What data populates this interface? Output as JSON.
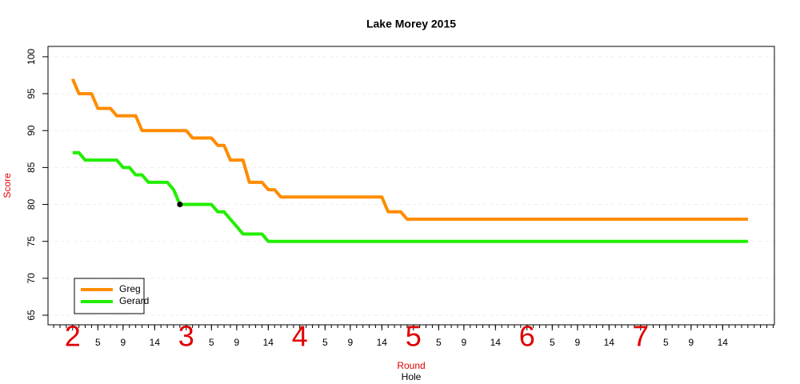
{
  "chart_data": {
    "type": "line",
    "title": "Lake Morey 2015",
    "xlabel": "Hole",
    "round_label": "Round",
    "ylabel": "Score",
    "x": [
      1,
      2,
      3,
      4,
      5,
      6,
      7,
      8,
      9,
      10,
      11,
      12,
      13,
      14,
      15,
      16,
      17,
      18,
      19,
      20,
      21,
      22,
      23,
      24,
      25,
      26,
      27,
      28,
      29,
      30,
      31,
      32,
      33,
      34,
      35,
      36,
      37,
      38,
      39,
      40,
      41,
      42,
      43,
      44,
      45,
      46,
      47,
      48,
      49,
      50,
      51,
      52,
      53,
      54,
      55,
      56,
      57,
      58,
      59,
      60,
      61,
      62,
      63,
      64,
      65,
      66,
      67,
      68,
      69,
      70,
      71,
      72,
      73,
      74,
      75,
      76,
      77,
      78,
      79,
      80,
      81,
      82,
      83,
      84,
      85,
      86,
      87,
      88,
      89,
      90,
      91,
      92,
      93,
      94,
      95,
      96,
      97,
      98,
      99,
      100,
      101,
      102,
      103,
      104,
      105,
      106,
      107,
      108
    ],
    "series": [
      {
        "name": "Greg",
        "color": "#ff8c00",
        "values": [
          97,
          95,
          95,
          95,
          93,
          93,
          93,
          92,
          92,
          92,
          92,
          90,
          90,
          90,
          90,
          90,
          90,
          90,
          90,
          89,
          89,
          89,
          89,
          88,
          88,
          86,
          86,
          86,
          83,
          83,
          83,
          82,
          82,
          81,
          81,
          81,
          81,
          81,
          81,
          81,
          81,
          81,
          81,
          81,
          81,
          81,
          81,
          81,
          81,
          81,
          79,
          79,
          79,
          78,
          78,
          78,
          78,
          78,
          78,
          78,
          78,
          78,
          78,
          78,
          78,
          78,
          78,
          78,
          78,
          78,
          78,
          78,
          78,
          78,
          78,
          78,
          78,
          78,
          78,
          78,
          78,
          78,
          78,
          78,
          78,
          78,
          78,
          78,
          78,
          78,
          78,
          78,
          78,
          78,
          78,
          78,
          78,
          78,
          78,
          78,
          78,
          78,
          78,
          78,
          78,
          78,
          78,
          78
        ]
      },
      {
        "name": "Gerard",
        "color": "#22ee00",
        "values": [
          87,
          87,
          86,
          86,
          86,
          86,
          86,
          86,
          85,
          85,
          84,
          84,
          83,
          83,
          83,
          83,
          82,
          80,
          80,
          80,
          80,
          80,
          80,
          79,
          79,
          78,
          77,
          76,
          76,
          76,
          76,
          75,
          75,
          75,
          75,
          75,
          75,
          75,
          75,
          75,
          75,
          75,
          75,
          75,
          75,
          75,
          75,
          75,
          75,
          75,
          75,
          75,
          75,
          75,
          75,
          75,
          75,
          75,
          75,
          75,
          75,
          75,
          75,
          75,
          75,
          75,
          75,
          75,
          75,
          75,
          75,
          75,
          75,
          75,
          75,
          75,
          75,
          75,
          75,
          75,
          75,
          75,
          75,
          75,
          75,
          75,
          75,
          75,
          75,
          75,
          75,
          75,
          75,
          75,
          75,
          75,
          75,
          75,
          75,
          75,
          75,
          75,
          75,
          75,
          75,
          75,
          75,
          75
        ]
      }
    ],
    "marker": {
      "x": 18,
      "y": 80
    },
    "xlim": [
      -2.9,
      112.2
    ],
    "ylim": [
      63.7,
      101.4
    ],
    "yticks": [
      65,
      70,
      75,
      80,
      85,
      90,
      95,
      100
    ],
    "xticks": [
      {
        "value": 5,
        "label": "5"
      },
      {
        "value": 9,
        "label": "9"
      },
      {
        "value": 14,
        "label": "14"
      },
      {
        "value": 23,
        "label": "5"
      },
      {
        "value": 27,
        "label": "9"
      },
      {
        "value": 32,
        "label": "14"
      },
      {
        "value": 41,
        "label": "5"
      },
      {
        "value": 45,
        "label": "9"
      },
      {
        "value": 50,
        "label": "14"
      },
      {
        "value": 59,
        "label": "5"
      },
      {
        "value": 63,
        "label": "9"
      },
      {
        "value": 68,
        "label": "14"
      },
      {
        "value": 77,
        "label": "5"
      },
      {
        "value": 81,
        "label": "9"
      },
      {
        "value": 86,
        "label": "14"
      },
      {
        "value": 95,
        "label": "5"
      },
      {
        "value": 99,
        "label": "9"
      },
      {
        "value": 104,
        "label": "14"
      }
    ],
    "round_ticks": [
      {
        "value": 1,
        "label": "2"
      },
      {
        "value": 19,
        "label": "3"
      },
      {
        "value": 37,
        "label": "4"
      },
      {
        "value": 55,
        "label": "5"
      },
      {
        "value": 73,
        "label": "6"
      },
      {
        "value": 91,
        "label": "7"
      }
    ],
    "grid": true,
    "legend": "bottom-left"
  }
}
